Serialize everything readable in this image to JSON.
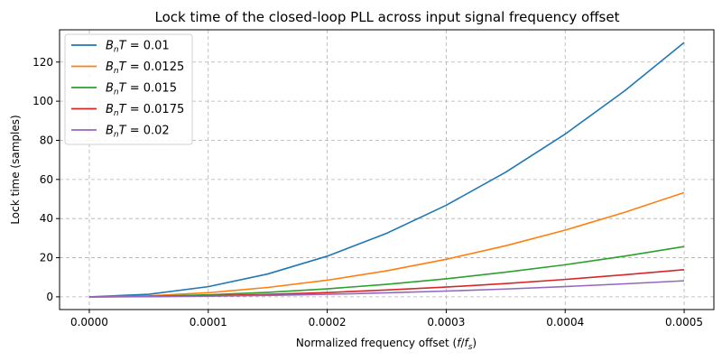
{
  "chart_data": {
    "type": "line",
    "title": "Lock time of the closed-loop PLL across input signal frequency offset",
    "xlabel": "Normalized frequency offset (f/f_s)",
    "ylabel": "Lock time (samples)",
    "xlim": [
      -2.5e-05,
      0.000525
    ],
    "ylim": [
      -6.5,
      136.5
    ],
    "xticks": [
      0,
      0.0001,
      0.0002,
      0.0003,
      0.0004,
      0.0005
    ],
    "xtick_labels": [
      "0.0000",
      "0.0001",
      "0.0002",
      "0.0003",
      "0.0004",
      "0.0005"
    ],
    "yticks": [
      0,
      20,
      40,
      60,
      80,
      100,
      120
    ],
    "ytick_labels": [
      "0",
      "20",
      "40",
      "60",
      "80",
      "100",
      "120"
    ],
    "grid": true,
    "legend_position": "top-left",
    "x": [
      0,
      5e-05,
      0.0001,
      0.00015,
      0.0002,
      0.00025,
      0.0003,
      0.00035,
      0.0004,
      0.00045,
      0.0005
    ],
    "series": [
      {
        "name": "B_nT = 0.01",
        "color": "#1f77b4",
        "values": [
          0,
          1.3,
          5.2,
          11.7,
          20.8,
          32.5,
          46.8,
          63.7,
          83.2,
          105.3,
          130
        ]
      },
      {
        "name": "B_nT = 0.0125",
        "color": "#ff7f0e",
        "values": [
          0,
          0.53,
          2.1,
          4.8,
          8.5,
          13.3,
          19.2,
          26.1,
          34.1,
          43.2,
          53.3
        ]
      },
      {
        "name": "B_nT = 0.015",
        "color": "#2ca02c",
        "values": [
          0,
          0.26,
          1.03,
          2.3,
          4.1,
          6.4,
          9.2,
          12.6,
          16.4,
          20.8,
          25.7
        ]
      },
      {
        "name": "B_nT = 0.0175",
        "color": "#d62728",
        "values": [
          0,
          0.14,
          0.56,
          1.25,
          2.2,
          3.5,
          5.0,
          6.8,
          8.9,
          11.3,
          13.9
        ]
      },
      {
        "name": "B_nT = 0.02",
        "color": "#9467bd",
        "values": [
          0,
          0.08,
          0.33,
          0.74,
          1.3,
          2.05,
          2.95,
          4.0,
          5.25,
          6.65,
          8.2
        ]
      }
    ]
  }
}
